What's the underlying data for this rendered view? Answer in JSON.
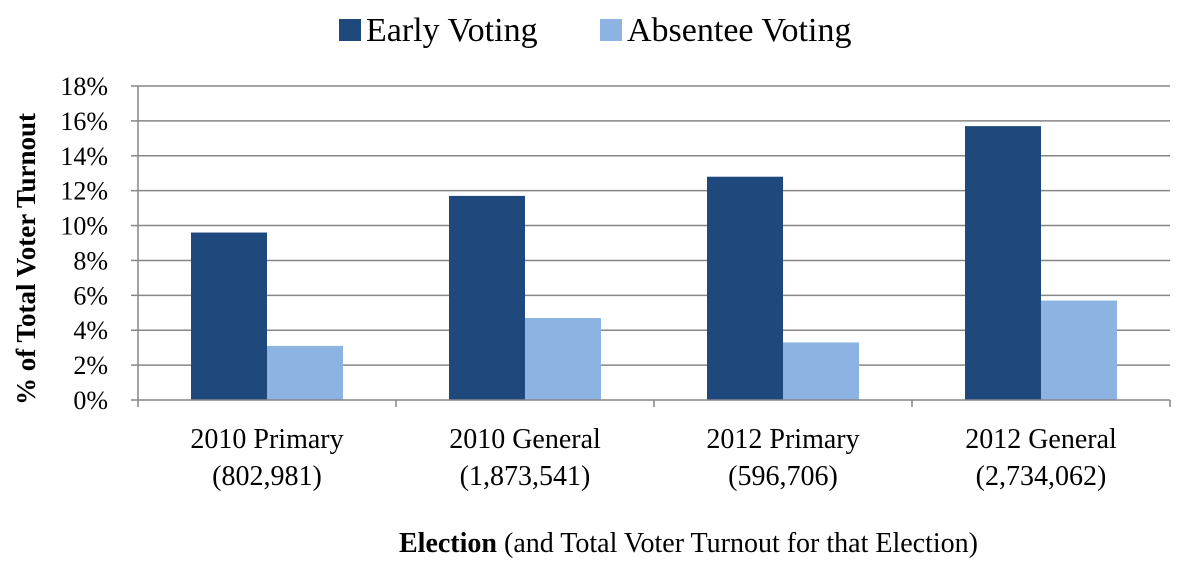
{
  "chart_data": {
    "type": "bar",
    "categories": [
      [
        "2010 Primary",
        "(802,981)"
      ],
      [
        "2010 General",
        "(1,873,541)"
      ],
      [
        "2012 Primary",
        "(596,706)"
      ],
      [
        "2012 General",
        "(2,734,062)"
      ]
    ],
    "series": [
      {
        "name": "Early Voting",
        "color": "#1F497D",
        "values": [
          9.6,
          11.7,
          12.8,
          15.7
        ]
      },
      {
        "name": "Absentee Voting",
        "color": "#8DB3E2",
        "values": [
          3.1,
          4.7,
          3.3,
          5.7
        ]
      }
    ],
    "ylabel": "% of Total Voter Turnout",
    "xlabel_bold": "Election",
    "xlabel_rest": " (and Total Voter Turnout for that Election)",
    "ylim": [
      0,
      18
    ],
    "yticks": [
      "0%",
      "2%",
      "4%",
      "6%",
      "8%",
      "10%",
      "12%",
      "14%",
      "16%",
      "18%"
    ],
    "grid": true,
    "legend_position": "top",
    "gridline_color": "#868686",
    "axis_color": "#868686"
  }
}
